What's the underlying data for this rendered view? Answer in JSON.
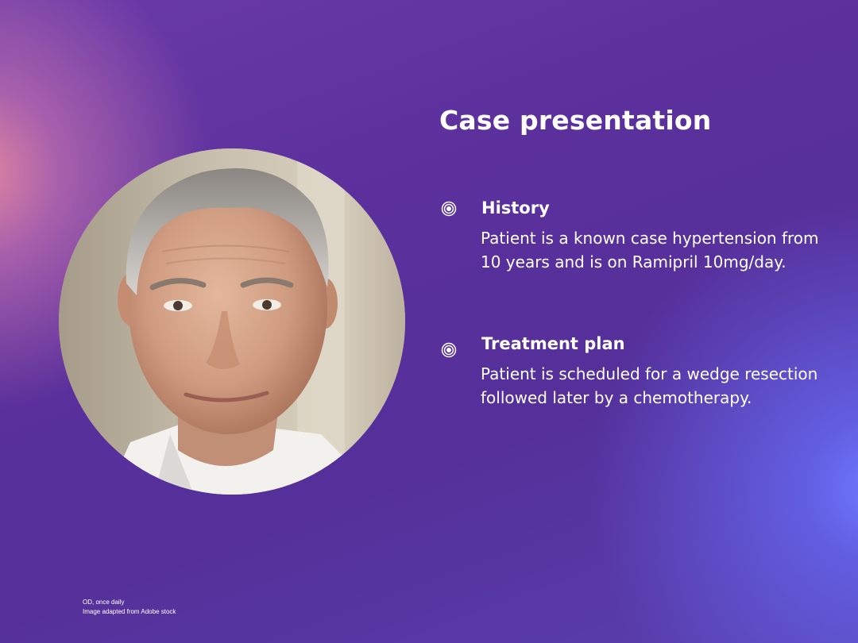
{
  "slide": {
    "title": "Case presentation",
    "sections": [
      {
        "heading": "History",
        "body": "Patient is a known case hypertension from 10 years and is on Ramipril 10mg/day."
      },
      {
        "heading": "Treatment plan",
        "body": "Patient is scheduled for a wedge resection followed later by a chemotherapy."
      }
    ],
    "footnotes": {
      "line1": "OD, once daily",
      "line2": "Image adapted from Adobe stock"
    }
  },
  "icons": {
    "bullet": "concentric-circle-bullet-icon"
  },
  "colors": {
    "text": "#ffffff",
    "background_primary": "#5b309c",
    "glow_left": "#eb8ca0",
    "glow_right": "#6e78ff"
  }
}
